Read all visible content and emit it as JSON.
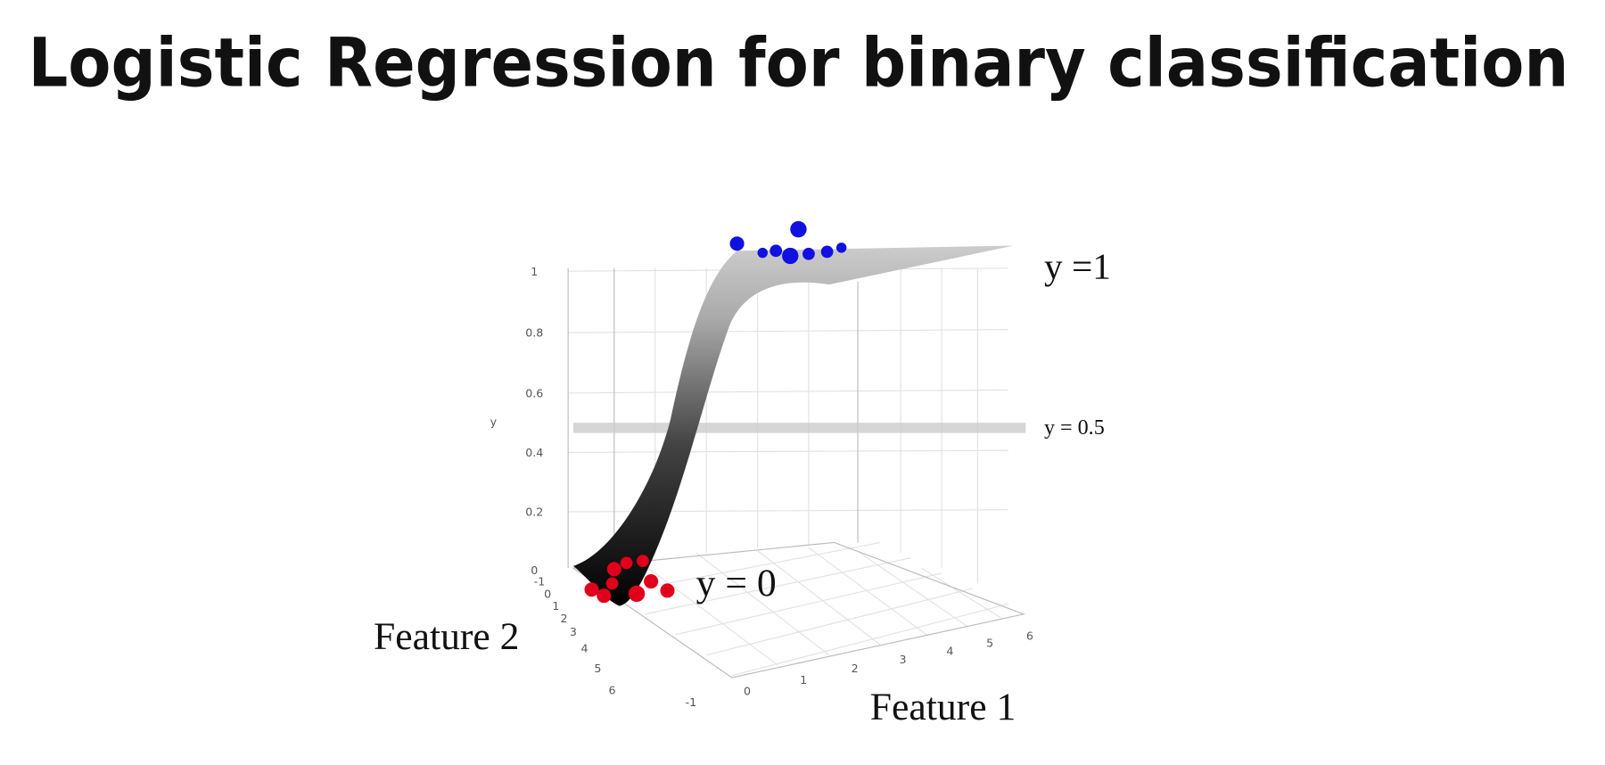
{
  "title": "Logistic Regression for binary classification",
  "plot": {
    "y_axis_label": "y",
    "y_ticks": [
      1,
      0.8,
      0.6,
      0.4,
      0.2,
      0
    ],
    "feature1_label": "Feature 1",
    "feature1_ticks": [
      -1,
      0,
      1,
      2,
      3,
      4,
      5,
      6
    ],
    "feature2_label": "Feature 2",
    "feature2_ticks": [
      -1,
      0,
      1,
      2,
      3,
      4,
      5,
      6
    ],
    "annotations": [
      "y =1",
      "y = 0.5",
      "y = 0"
    ]
  }
}
